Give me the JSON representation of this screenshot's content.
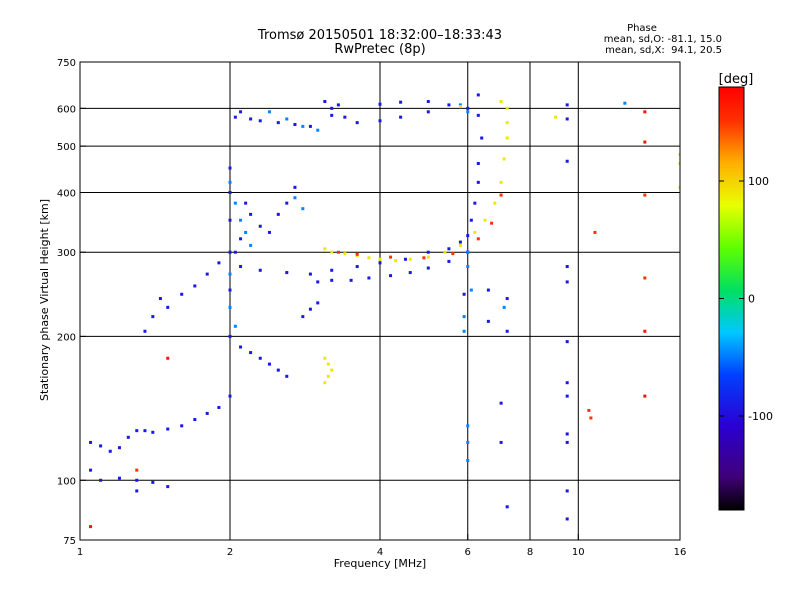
{
  "chart_data": {
    "type": "scatter",
    "title": "Tromsø 20150501 18:32:00–18:33:43",
    "subtitle": "RwPretec (8p)",
    "xlabel": "Frequency [MHz]",
    "ylabel": "Stationary phase Virtual Height [km]",
    "x_scale": "log",
    "y_scale": "log",
    "xlim": [
      1,
      16
    ],
    "ylim": [
      75,
      750
    ],
    "x_ticks": [
      1,
      2,
      4,
      6,
      8,
      10,
      16
    ],
    "x_tick_labels": [
      "1",
      "2",
      "4",
      "6",
      "8",
      "10",
      "16"
    ],
    "y_ticks": [
      75,
      100,
      200,
      300,
      400,
      500,
      600,
      750
    ],
    "y_tick_labels": [
      "75",
      "100",
      "200",
      "300",
      "400",
      "500",
      "600",
      "750"
    ],
    "x_gridlines": [
      2,
      4,
      6,
      8,
      10
    ],
    "y_gridlines": [
      100,
      200,
      300,
      400,
      500,
      600
    ],
    "phase_stats": {
      "title": "Phase",
      "lines": [
        "mean, sd,O: -81.1, 15.0",
        "mean, sd,X:  94.1, 20.5"
      ]
    },
    "colorbar": {
      "label": "[deg]",
      "range": [
        -180,
        180
      ],
      "ticks": [
        100,
        0,
        -100
      ],
      "tick_labels": [
        "100",
        "0",
        "-100"
      ],
      "colormap": "rainbow (black-purple-blue-cyan-green-yellow-orange-red)"
    },
    "series": [
      {
        "phase_deg": -95,
        "points": [
          [
            1.05,
            120
          ],
          [
            1.1,
            118
          ],
          [
            1.15,
            115
          ],
          [
            1.2,
            117
          ],
          [
            1.25,
            123
          ],
          [
            1.3,
            127
          ],
          [
            1.35,
            127
          ],
          [
            1.4,
            126
          ],
          [
            1.5,
            128
          ],
          [
            1.6,
            130
          ],
          [
            1.7,
            134
          ],
          [
            1.8,
            138
          ],
          [
            1.9,
            142
          ],
          [
            2.0,
            150
          ],
          [
            1.05,
            105
          ],
          [
            1.1,
            100
          ],
          [
            1.2,
            101
          ],
          [
            1.3,
            100
          ],
          [
            1.4,
            99
          ],
          [
            1.5,
            97
          ],
          [
            1.35,
            205
          ],
          [
            1.4,
            220
          ],
          [
            1.45,
            240
          ],
          [
            1.5,
            230
          ],
          [
            1.6,
            245
          ],
          [
            1.7,
            255
          ],
          [
            1.8,
            270
          ],
          [
            1.9,
            285
          ],
          [
            2.0,
            200
          ],
          [
            2.0,
            250
          ],
          [
            2.0,
            300
          ],
          [
            2.0,
            350
          ],
          [
            2.0,
            400
          ],
          [
            2.0,
            450
          ],
          [
            2.05,
            300
          ],
          [
            2.1,
            280
          ],
          [
            2.1,
            320
          ],
          [
            2.15,
            380
          ],
          [
            2.2,
            360
          ],
          [
            2.3,
            340
          ],
          [
            2.4,
            330
          ],
          [
            2.5,
            360
          ],
          [
            2.6,
            380
          ],
          [
            2.7,
            410
          ],
          [
            2.1,
            190
          ],
          [
            2.2,
            185
          ],
          [
            2.3,
            180
          ],
          [
            2.4,
            175
          ],
          [
            2.5,
            170
          ],
          [
            2.6,
            165
          ],
          [
            2.05,
            575
          ],
          [
            2.1,
            590
          ],
          [
            2.2,
            570
          ],
          [
            2.3,
            565
          ],
          [
            2.5,
            560
          ],
          [
            2.7,
            555
          ],
          [
            2.9,
            550
          ],
          [
            3.2,
            580
          ],
          [
            3.4,
            575
          ],
          [
            3.6,
            560
          ],
          [
            4.0,
            565
          ],
          [
            4.4,
            575
          ],
          [
            5.0,
            590
          ],
          [
            5.5,
            610
          ],
          [
            6.0,
            600
          ],
          [
            6.3,
            640
          ],
          [
            6.3,
            580
          ],
          [
            6.4,
            520
          ],
          [
            6.3,
            460
          ],
          [
            6.3,
            420
          ],
          [
            6.2,
            380
          ],
          [
            6.1,
            350
          ],
          [
            6.0,
            325
          ],
          [
            5.8,
            315
          ],
          [
            5.5,
            305
          ],
          [
            5.0,
            300
          ],
          [
            4.5,
            290
          ],
          [
            4.0,
            285
          ],
          [
            3.6,
            280
          ],
          [
            3.2,
            275
          ],
          [
            2.9,
            270
          ],
          [
            2.6,
            272
          ],
          [
            2.3,
            275
          ],
          [
            3.0,
            260
          ],
          [
            3.2,
            262
          ],
          [
            3.5,
            262
          ],
          [
            3.8,
            265
          ],
          [
            4.2,
            268
          ],
          [
            4.6,
            272
          ],
          [
            5.0,
            278
          ],
          [
            5.5,
            287
          ],
          [
            6.0,
            300
          ],
          [
            2.8,
            220
          ],
          [
            2.9,
            228
          ],
          [
            3.0,
            235
          ],
          [
            3.2,
            600
          ],
          [
            3.1,
            620
          ],
          [
            3.3,
            610
          ],
          [
            4.0,
            612
          ],
          [
            4.4,
            618
          ],
          [
            5.0,
            620
          ],
          [
            6.6,
            250
          ],
          [
            6.6,
            215
          ],
          [
            5.9,
            245
          ],
          [
            9.5,
            610
          ],
          [
            9.5,
            570
          ],
          [
            9.5,
            465
          ],
          [
            9.5,
            280
          ],
          [
            9.5,
            260
          ],
          [
            9.5,
            195
          ],
          [
            9.5,
            160
          ],
          [
            9.5,
            150
          ],
          [
            9.5,
            125
          ],
          [
            9.5,
            120
          ],
          [
            9.5,
            95
          ],
          [
            9.5,
            83
          ],
          [
            7.2,
            240
          ],
          [
            7.2,
            205
          ],
          [
            7.2,
            88
          ],
          [
            7.0,
            145
          ],
          [
            7.0,
            120
          ],
          [
            1.3,
            95
          ]
        ]
      },
      {
        "phase_deg": -50,
        "points": [
          [
            2.0,
            420
          ],
          [
            2.05,
            380
          ],
          [
            2.1,
            350
          ],
          [
            2.15,
            330
          ],
          [
            2.2,
            310
          ],
          [
            2.0,
            270
          ],
          [
            2.0,
            230
          ],
          [
            2.05,
            210
          ],
          [
            2.7,
            390
          ],
          [
            2.8,
            370
          ],
          [
            2.4,
            590
          ],
          [
            2.6,
            570
          ],
          [
            2.8,
            550
          ],
          [
            3.0,
            540
          ],
          [
            5.8,
            610
          ],
          [
            6.0,
            590
          ],
          [
            6.0,
            300
          ],
          [
            6.0,
            280
          ],
          [
            6.1,
            250
          ],
          [
            5.9,
            220
          ],
          [
            5.9,
            205
          ],
          [
            6.0,
            130
          ],
          [
            6.0,
            120
          ],
          [
            6.0,
            110
          ],
          [
            7.1,
            230
          ],
          [
            12.4,
            615
          ]
        ]
      },
      {
        "phase_deg": 90,
        "points": [
          [
            3.1,
            305
          ],
          [
            3.2,
            300
          ],
          [
            3.4,
            298
          ],
          [
            3.6,
            295
          ],
          [
            3.8,
            292
          ],
          [
            4.0,
            290
          ],
          [
            4.3,
            288
          ],
          [
            4.6,
            290
          ],
          [
            5.0,
            293
          ],
          [
            5.4,
            300
          ],
          [
            5.8,
            310
          ],
          [
            6.2,
            330
          ],
          [
            6.5,
            350
          ],
          [
            6.8,
            380
          ],
          [
            7.0,
            420
          ],
          [
            7.1,
            470
          ],
          [
            7.2,
            520
          ],
          [
            7.2,
            560
          ],
          [
            7.2,
            600
          ],
          [
            7.0,
            620
          ],
          [
            5.8,
            605
          ],
          [
            3.1,
            180
          ],
          [
            3.15,
            175
          ],
          [
            3.2,
            170
          ],
          [
            3.15,
            165
          ],
          [
            3.1,
            160
          ],
          [
            9.0,
            575
          ],
          [
            16,
            460
          ],
          [
            16,
            480
          ],
          [
            16,
            410
          ]
        ]
      },
      {
        "phase_deg": 150,
        "points": [
          [
            3.3,
            300
          ],
          [
            3.6,
            297
          ],
          [
            4.2,
            293
          ],
          [
            4.9,
            292
          ],
          [
            5.6,
            298
          ],
          [
            6.3,
            320
          ],
          [
            6.7,
            345
          ],
          [
            7.0,
            395
          ],
          [
            10.8,
            330
          ],
          [
            10.5,
            140
          ],
          [
            10.6,
            135
          ],
          [
            13.6,
            395
          ],
          [
            13.6,
            265
          ],
          [
            1.3,
            105
          ]
        ]
      },
      {
        "phase_deg": 170,
        "points": [
          [
            13.6,
            590
          ],
          [
            13.6,
            510
          ],
          [
            13.6,
            205
          ],
          [
            13.6,
            150
          ],
          [
            1.05,
            80
          ],
          [
            1.5,
            180
          ]
        ]
      }
    ]
  }
}
